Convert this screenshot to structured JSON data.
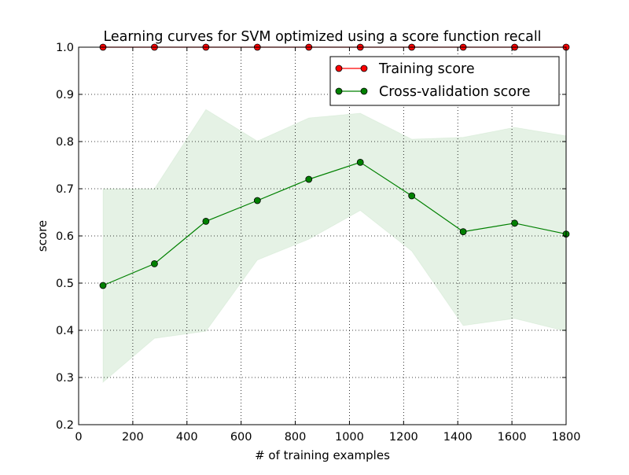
{
  "chart_data": {
    "type": "line",
    "title": "Learning curves for SVM optimized using a score function recall",
    "xlabel": "# of training examples",
    "ylabel": "score",
    "xlim": [
      0,
      1800
    ],
    "ylim": [
      0.2,
      1.0
    ],
    "xticks": [
      0,
      200,
      400,
      600,
      800,
      1000,
      1200,
      1400,
      1600,
      1800
    ],
    "yticks": [
      0.2,
      0.3,
      0.4,
      0.5,
      0.6,
      0.7,
      0.8,
      0.9,
      1.0
    ],
    "xtick_labels": [
      "0",
      "200",
      "400",
      "600",
      "800",
      "1000",
      "1200",
      "1400",
      "1600",
      "1800"
    ],
    "ytick_labels": [
      "0.2",
      "0.3",
      "0.4",
      "0.5",
      "0.6",
      "0.7",
      "0.8",
      "0.9",
      "1.0"
    ],
    "grid": true,
    "legend_position": "upper-right",
    "x": [
      90,
      280,
      470,
      660,
      850,
      1040,
      1230,
      1420,
      1610,
      1800
    ],
    "series": [
      {
        "name": "Training score",
        "color": "#ff0000",
        "values": [
          1.0,
          1.0,
          1.0,
          1.0,
          1.0,
          1.0,
          1.0,
          1.0,
          1.0,
          1.0
        ],
        "band_lower": [
          1.0,
          1.0,
          1.0,
          1.0,
          1.0,
          1.0,
          1.0,
          1.0,
          1.0,
          1.0
        ],
        "band_upper": [
          1.0,
          1.0,
          1.0,
          1.0,
          1.0,
          1.0,
          1.0,
          1.0,
          1.0,
          1.0
        ]
      },
      {
        "name": "Cross-validation score",
        "color": "#008000",
        "values": [
          0.495,
          0.541,
          0.631,
          0.675,
          0.72,
          0.756,
          0.685,
          0.609,
          0.627,
          0.604
        ],
        "band_lower": [
          0.29,
          0.383,
          0.398,
          0.549,
          0.593,
          0.654,
          0.568,
          0.41,
          0.425,
          0.398
        ],
        "band_upper": [
          0.7,
          0.7,
          0.868,
          0.801,
          0.85,
          0.86,
          0.805,
          0.809,
          0.83,
          0.812
        ]
      }
    ]
  }
}
